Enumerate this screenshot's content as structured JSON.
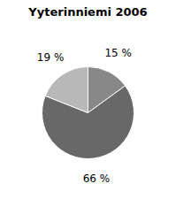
{
  "chart_data": {
    "type": "pie",
    "title": "Yyterinniemi 2006",
    "values": [
      15,
      66,
      19
    ],
    "value_labels": [
      "15 %",
      "66 %",
      "19 %"
    ],
    "colors": [
      "#888888",
      "#686868",
      "#b8b8b8"
    ],
    "data_labels": true
  }
}
